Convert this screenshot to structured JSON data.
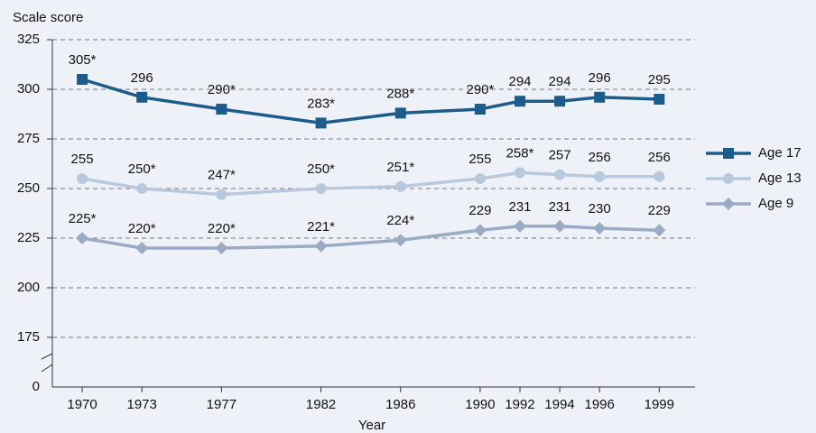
{
  "chart_data": {
    "type": "line",
    "y_axis_label": "Scale score",
    "x_axis_label": "Year",
    "x": [
      1970,
      1973,
      1977,
      1982,
      1986,
      1990,
      1992,
      1994,
      1996,
      1999
    ],
    "xlim": [
      1968.5,
      2000.8
    ],
    "xticks": [
      1970,
      1973,
      1977,
      1982,
      1986,
      1990,
      1992,
      1994,
      1996,
      1999
    ],
    "ylim": [
      150,
      325
    ],
    "yticks": [
      175,
      200,
      225,
      250,
      275,
      300,
      325
    ],
    "y_origin_label": "0",
    "grid": true,
    "legend": "right",
    "series": [
      {
        "name": "Age 17",
        "color": "#1b5c8c",
        "marker": "square",
        "values": [
          305,
          296,
          290,
          283,
          288,
          290,
          294,
          294,
          296,
          295
        ],
        "value_labels": [
          "305*",
          "296",
          "290*",
          "283*",
          "288*",
          "290*",
          "294",
          "294",
          "296",
          "295"
        ]
      },
      {
        "name": "Age 13",
        "color": "#b9c9dd",
        "marker": "circle",
        "values": [
          255,
          250,
          247,
          250,
          251,
          255,
          258,
          257,
          256,
          256
        ],
        "value_labels": [
          "255",
          "250*",
          "247*",
          "250*",
          "251*",
          "255",
          "258*",
          "257",
          "256",
          "256"
        ]
      },
      {
        "name": "Age 9",
        "color": "#9cabc5",
        "marker": "diamond",
        "values": [
          225,
          220,
          220,
          221,
          224,
          229,
          231,
          231,
          230,
          229
        ],
        "value_labels": [
          "225*",
          "220*",
          "220*",
          "221*",
          "224*",
          "229",
          "231",
          "231",
          "230",
          "229"
        ]
      }
    ]
  }
}
